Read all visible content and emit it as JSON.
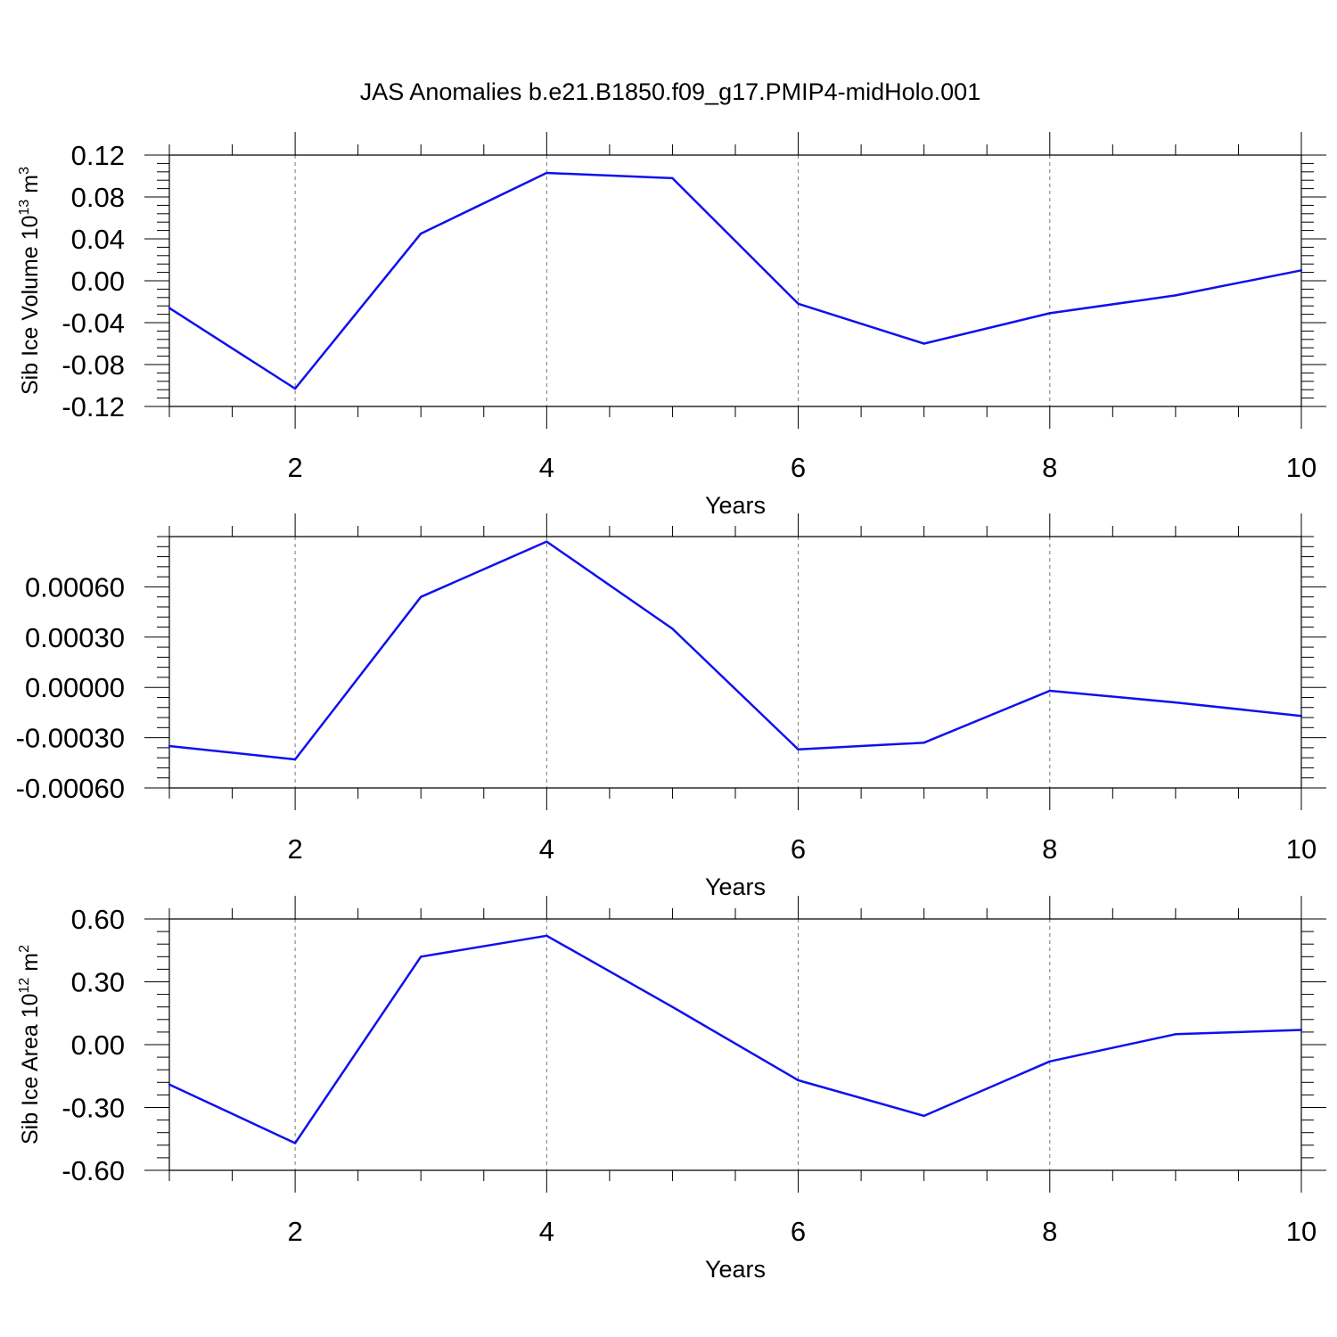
{
  "chart_data": {
    "type": "line",
    "title": "JAS Anomalies b.e21.B1850.f09_g17.PMIP4-midHolo.001",
    "panels": [
      {
        "id": "volume",
        "ylabel": "Sib Ice Volume 10",
        "ylabel_exp": "13",
        "ylabel_unit": " m",
        "ylabel_unit_exp": "3",
        "xlabel": "Years",
        "xlim": [
          1,
          10
        ],
        "ylim": [
          -0.12,
          0.12
        ],
        "ytick_values": [
          -0.12,
          -0.08,
          -0.04,
          0.0,
          0.04,
          0.08,
          0.12
        ],
        "ytick_labels": [
          "-0.12",
          "-0.08",
          "-0.04",
          "0.00",
          "0.04",
          "0.08",
          "0.12"
        ],
        "xtick_values": [
          2,
          4,
          6,
          8,
          10
        ],
        "xtick_labels": [
          "2",
          "4",
          "6",
          "8",
          "10"
        ],
        "x": [
          1,
          2,
          3,
          4,
          5,
          6,
          7,
          8,
          9,
          10
        ],
        "y": [
          -0.026,
          -0.103,
          0.045,
          0.103,
          0.098,
          -0.022,
          -0.06,
          -0.031,
          -0.014,
          0.01
        ],
        "color": "#1010ee"
      },
      {
        "id": "thickness",
        "ylabel": "",
        "xlabel": "Years",
        "xlim": [
          1,
          10
        ],
        "ylim": [
          -0.0006,
          0.0009
        ],
        "ytick_values": [
          -0.0006,
          -0.0003,
          0.0,
          0.0003,
          0.0006
        ],
        "ytick_labels": [
          "-0.00060",
          "-0.00030",
          "0.00000",
          "0.00030",
          "0.00060"
        ],
        "xtick_values": [
          2,
          4,
          6,
          8,
          10
        ],
        "xtick_labels": [
          "2",
          "4",
          "6",
          "8",
          "10"
        ],
        "x": [
          1,
          2,
          3,
          4,
          5,
          6,
          7,
          8,
          9,
          10
        ],
        "y": [
          -0.00035,
          -0.00043,
          0.00054,
          0.00087,
          0.00035,
          -0.00037,
          -0.00033,
          -2e-05,
          -9e-05,
          -0.00017
        ],
        "color": "#1010ee"
      },
      {
        "id": "area",
        "ylabel": "Sib Ice Area 10",
        "ylabel_exp": "12",
        "ylabel_unit": " m",
        "ylabel_unit_exp": "2",
        "xlabel": "Years",
        "xlim": [
          1,
          10
        ],
        "ylim": [
          -0.6,
          0.6
        ],
        "ytick_values": [
          -0.6,
          -0.3,
          0.0,
          0.3,
          0.6
        ],
        "ytick_labels": [
          "-0.60",
          "-0.30",
          "0.00",
          "0.30",
          "0.60"
        ],
        "xtick_values": [
          2,
          4,
          6,
          8,
          10
        ],
        "xtick_labels": [
          "2",
          "4",
          "6",
          "8",
          "10"
        ],
        "x": [
          1,
          2,
          3,
          4,
          5,
          6,
          7,
          8,
          9,
          10
        ],
        "y": [
          -0.19,
          -0.47,
          0.42,
          0.52,
          0.18,
          -0.17,
          -0.34,
          -0.08,
          0.05,
          0.07
        ],
        "color": "#1010ee"
      }
    ]
  }
}
